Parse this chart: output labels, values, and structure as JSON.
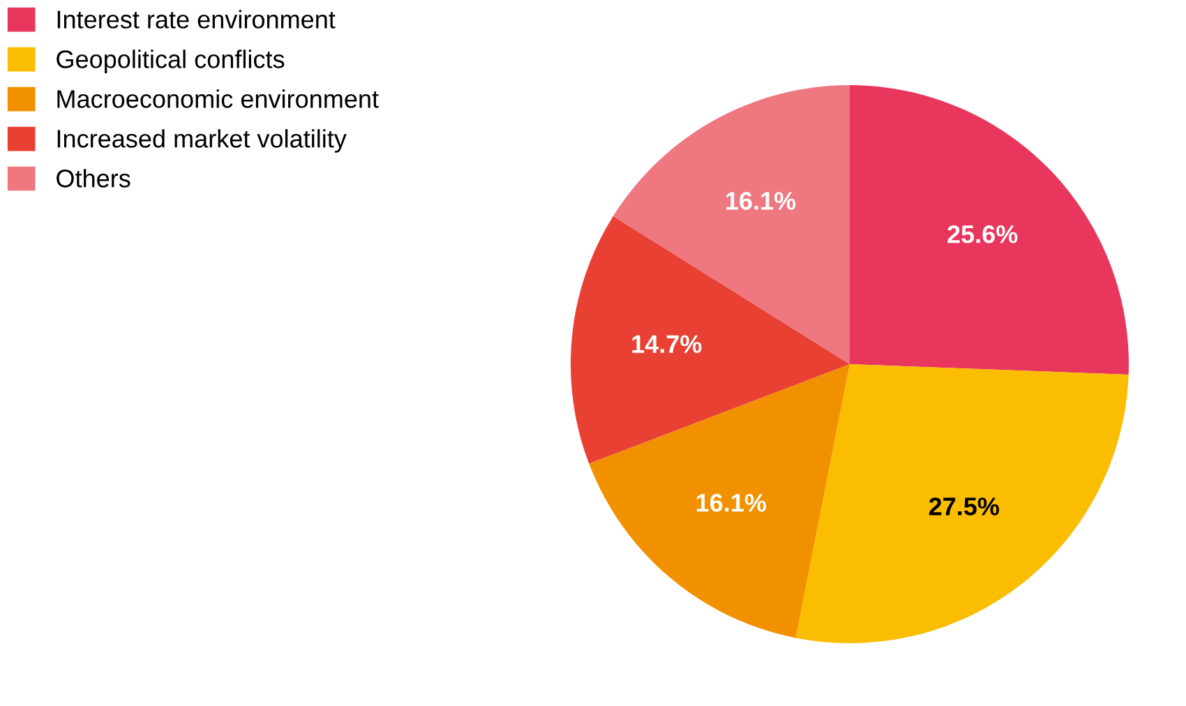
{
  "chart_data": {
    "type": "pie",
    "categories": [
      "Interest rate environment",
      "Geopolitical conflicts",
      "Macroeconomic environment",
      "Increased market volatility",
      "Others"
    ],
    "values": [
      25.6,
      27.5,
      16.1,
      14.7,
      16.1
    ],
    "colors": [
      "#e8365d",
      "#fbbd00",
      "#f29100",
      "#e94034",
      "#ee7780"
    ],
    "value_labels": [
      "25.6%",
      "27.5%",
      "16.1%",
      "14.7%",
      "16.1%"
    ],
    "legend": "top left"
  }
}
